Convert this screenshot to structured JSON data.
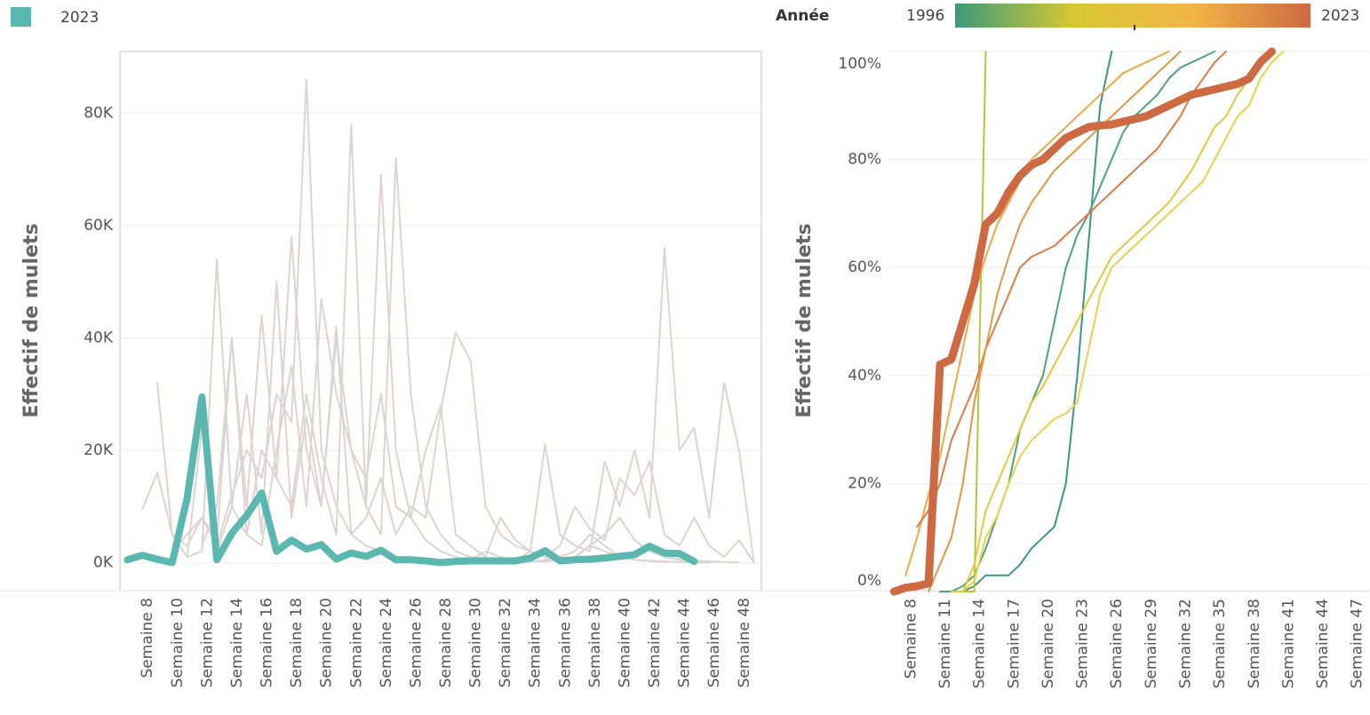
{
  "chart_data": [
    {
      "type": "line",
      "y_label": "Effectif de mulets",
      "categories": [
        null,
        "Semaine 8",
        null,
        "Semaine 10",
        null,
        "Semaine 12",
        null,
        "Semaine 14",
        null,
        "Semaine 16",
        null,
        "Semaine 18",
        null,
        "Semaine 20",
        null,
        "Semaine 22",
        null,
        "Semaine 24",
        null,
        "Semaine 26",
        null,
        "Semaine 28",
        null,
        "Semaine 30",
        null,
        "Semaine 32",
        null,
        "Semaine 34",
        null,
        "Semaine 36",
        null,
        "Semaine 38",
        null,
        "Semaine 40",
        null,
        "Semaine 42",
        null,
        "Semaine 44",
        null,
        "Semaine 46",
        null,
        "Semaine 48",
        null
      ],
      "ylim": [
        -5000,
        91000
      ],
      "yticks": [
        {
          "value": 0,
          "label": "0K"
        },
        {
          "value": 20000,
          "label": "20K"
        },
        {
          "value": 40000,
          "label": "40K"
        },
        {
          "value": 60000,
          "label": "60K"
        },
        {
          "value": 80000,
          "label": "80K"
        }
      ],
      "grid": true,
      "series": [
        {
          "color": "#ddd3d1",
          "values": [
            null,
            null,
            null,
            2000,
            5000,
            8000,
            3000,
            12000,
            20000,
            15000,
            30000,
            25000,
            86000,
            20000,
            10000,
            5000,
            3000,
            2000,
            1000,
            500,
            300,
            200,
            500,
            1000,
            800,
            500,
            300,
            2000,
            1000,
            500,
            800,
            3000,
            5000,
            8000,
            4000,
            2000,
            1000,
            500,
            300,
            200,
            100,
            0,
            null
          ]
        },
        {
          "color": "#ddd3d1",
          "values": [
            null,
            null,
            null,
            null,
            null,
            3000,
            10000,
            40000,
            5000,
            20000,
            15000,
            10000,
            30000,
            15000,
            5000,
            78000,
            10000,
            69000,
            20000,
            8000,
            4000,
            2000,
            1000,
            500,
            2000,
            1000,
            500,
            300,
            200,
            500,
            1000,
            3000,
            2000,
            1000,
            500,
            300,
            200,
            100,
            0,
            0,
            null,
            null,
            null
          ]
        },
        {
          "color": "#ddd3d1",
          "values": [
            null,
            null,
            32000,
            5000,
            1000,
            2000,
            54000,
            10000,
            5000,
            3000,
            20000,
            35000,
            10000,
            47000,
            30000,
            20000,
            10000,
            5000,
            72000,
            30000,
            10000,
            5000,
            2000,
            1000,
            500,
            300,
            200,
            100,
            500,
            1000,
            2000,
            5000,
            3000,
            1000,
            500,
            300,
            200,
            null,
            null,
            null,
            null,
            null,
            null
          ]
        },
        {
          "color": "#ddd3d1",
          "values": [
            null,
            9500,
            16000,
            5000,
            3000,
            8000,
            4000,
            40000,
            10000,
            44000,
            15000,
            58000,
            20000,
            10000,
            42000,
            5000,
            8000,
            15000,
            5000,
            10000,
            8000,
            27000,
            41000,
            36000,
            10000,
            5000,
            3000,
            2000,
            21000,
            5000,
            3000,
            2000,
            18000,
            10000,
            20000,
            8000,
            56000,
            20000,
            24000,
            8000,
            32000,
            20000,
            0
          ]
        },
        {
          "color": "#ddd3d1",
          "values": [
            null,
            null,
            null,
            null,
            1000,
            24000,
            2000,
            10000,
            30000,
            5000,
            50000,
            8000,
            26000,
            10000,
            40000,
            20000,
            15000,
            30000,
            10000,
            8000,
            20000,
            28000,
            5000,
            3000,
            1000,
            8000,
            4000,
            2000,
            1000,
            3000,
            10000,
            6000,
            4000,
            15000,
            12000,
            18000,
            5000,
            3000,
            8000,
            3000,
            1000,
            4000,
            0
          ]
        },
        {
          "name": "2023",
          "color": "#5bb8b0",
          "values": [
            500,
            1300,
            600,
            0,
            11500,
            29500,
            500,
            5200,
            8400,
            12400,
            2000,
            4000,
            2400,
            3200,
            600,
            1700,
            1100,
            2200,
            500,
            500,
            300,
            0,
            200,
            300,
            300,
            300,
            300,
            800,
            2100,
            300,
            500,
            600,
            800,
            1100,
            1400,
            2900,
            1700,
            1600,
            200,
            null,
            null,
            null,
            null
          ]
        }
      ]
    },
    {
      "type": "line",
      "y_label": "Effectif de mulets",
      "colorbar": {
        "title": "Année",
        "range": [
          1996,
          2023
        ],
        "colors": [
          "#3a9a78",
          "#d8c832",
          "#f2b648",
          "#cd6a42"
        ]
      },
      "categories": [
        null,
        "Semaine 8",
        null,
        null,
        "Semaine 11",
        null,
        null,
        "Semaine 14",
        null,
        null,
        "Semaine 17",
        null,
        null,
        "Semaine 20",
        null,
        null,
        "Semaine 23",
        null,
        null,
        "Semaine 26",
        null,
        null,
        "Semaine 29",
        null,
        null,
        "Semaine 32",
        null,
        null,
        "Semaine 35",
        null,
        null,
        "Semaine 38",
        null,
        null,
        "Semaine 41",
        null,
        null,
        "Semaine 44",
        null,
        null,
        "Semaine 47",
        null
      ],
      "ylim": [
        0,
        100
      ],
      "yticks": [
        {
          "value": 0,
          "label": "0%"
        },
        {
          "value": 20,
          "label": "20%"
        },
        {
          "value": 40,
          "label": "40%"
        },
        {
          "value": 60,
          "label": "60%"
        },
        {
          "value": 80,
          "label": "80%"
        },
        {
          "value": 100,
          "label": "100%"
        }
      ],
      "grid": true,
      "series": [
        {
          "color": "#3a9a78",
          "values": [
            null,
            null,
            null,
            null,
            0,
            0,
            0,
            1,
            3,
            3,
            3,
            5,
            8,
            10,
            12,
            20,
            40,
            65,
            90,
            100,
            null,
            null,
            null,
            null,
            null,
            null,
            null,
            null,
            null,
            null,
            null,
            null,
            null,
            null,
            null,
            null,
            null,
            null,
            null,
            null,
            null,
            null
          ]
        },
        {
          "color": "#4ea27e",
          "values": [
            null,
            null,
            null,
            null,
            0,
            0,
            1,
            3,
            8,
            14,
            20,
            30,
            35,
            40,
            50,
            60,
            66,
            70,
            75,
            80,
            85,
            88,
            90,
            92,
            95,
            97,
            98,
            99,
            100,
            null,
            null,
            null,
            null,
            null,
            null,
            null,
            null,
            null,
            null,
            null,
            null,
            null
          ]
        },
        {
          "color": "#b8c43a",
          "values": [
            null,
            null,
            null,
            null,
            null,
            null,
            0,
            0,
            100,
            null,
            null,
            null,
            null,
            null,
            null,
            null,
            null,
            null,
            null,
            null,
            null,
            null,
            null,
            null,
            null,
            null,
            null,
            null,
            null,
            null,
            null,
            null,
            null,
            null,
            null,
            null,
            null,
            null,
            null,
            null,
            null,
            null
          ]
        },
        {
          "color": "#e4c83c",
          "values": [
            null,
            null,
            null,
            null,
            null,
            0,
            0,
            5,
            15,
            20,
            25,
            30,
            35,
            38,
            42,
            46,
            50,
            54,
            58,
            62,
            64,
            66,
            68,
            70,
            72,
            75,
            78,
            82,
            86,
            88,
            92,
            95,
            98,
            100,
            null,
            null,
            null,
            null,
            null,
            null,
            null,
            null
          ]
        },
        {
          "color": "#edd04a",
          "values": [
            null,
            null,
            null,
            null,
            null,
            null,
            0,
            2,
            10,
            14,
            20,
            25,
            28,
            30,
            32,
            33,
            35,
            45,
            55,
            60,
            62,
            64,
            66,
            68,
            70,
            72,
            74,
            76,
            80,
            84,
            88,
            90,
            95,
            98,
            100,
            null,
            null,
            null,
            null,
            null,
            null,
            null
          ]
        },
        {
          "color": "#f0a845",
          "values": [
            null,
            3,
            10,
            18,
            25,
            35,
            45,
            55,
            62,
            68,
            72,
            76,
            80,
            82,
            84,
            86,
            88,
            90,
            92,
            94,
            96,
            97,
            98,
            99,
            100,
            null,
            null,
            null,
            null,
            null,
            null,
            null,
            null,
            null,
            null,
            null,
            null,
            null,
            null,
            null,
            null,
            null
          ]
        },
        {
          "color": "#de7a45",
          "values": [
            null,
            null,
            12,
            15,
            20,
            28,
            33,
            38,
            45,
            50,
            55,
            60,
            62,
            63,
            64,
            66,
            68,
            70,
            72,
            74,
            76,
            78,
            80,
            82,
            85,
            88,
            92,
            95,
            98,
            100,
            null,
            null,
            null,
            null,
            null,
            null,
            null,
            null,
            null,
            null,
            null,
            null
          ]
        },
        {
          "color": "#e8953f",
          "values": [
            null,
            null,
            null,
            0,
            5,
            10,
            20,
            35,
            45,
            55,
            62,
            68,
            72,
            75,
            78,
            80,
            82,
            84,
            86,
            88,
            90,
            92,
            94,
            96,
            98,
            100,
            null,
            null,
            null,
            null,
            null,
            null,
            null,
            null,
            null,
            null,
            null,
            null,
            null,
            null,
            null,
            null
          ]
        },
        {
          "color": "#cd6a42",
          "values": [
            0,
            0.7,
            1,
            1.5,
            42,
            43,
            50,
            57,
            68,
            70,
            74,
            77,
            79,
            80,
            82,
            84,
            85,
            86,
            86.3,
            86.5,
            87,
            87.5,
            88,
            89,
            90,
            91,
            92,
            92.5,
            93,
            93.5,
            94,
            95,
            98,
            100,
            null,
            null,
            null,
            null,
            null,
            null,
            null,
            null
          ]
        }
      ]
    }
  ]
}
